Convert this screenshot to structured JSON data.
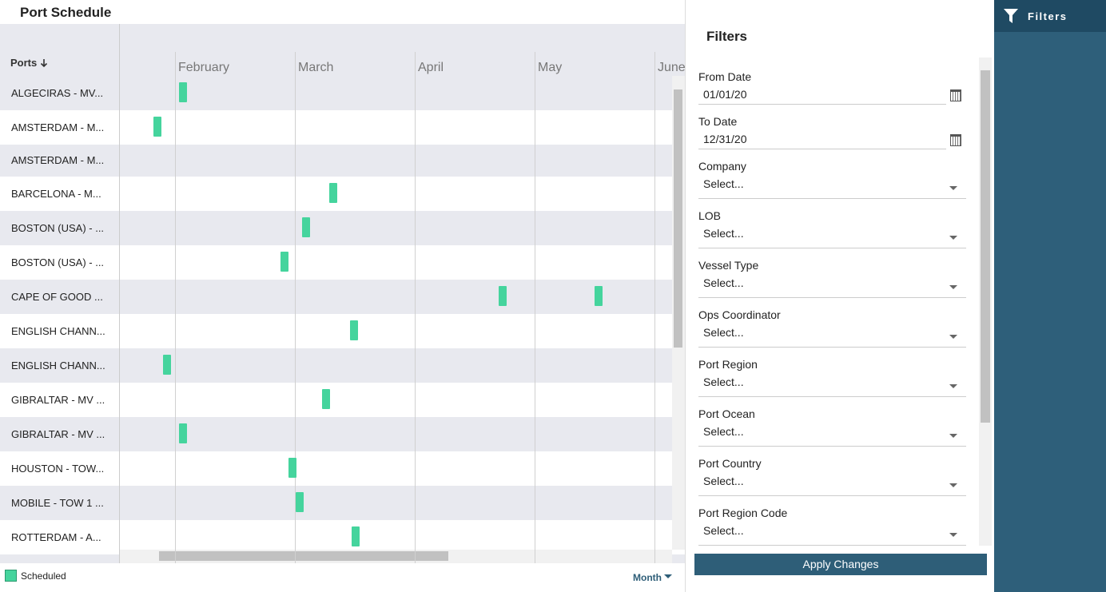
{
  "header": {
    "title": "Port Schedule"
  },
  "gantt": {
    "column_header": "Ports",
    "months": [
      "February",
      "March",
      "April",
      "May",
      "June"
    ],
    "rows": [
      "ALGECIRAS - MV...",
      "AMSTERDAM - M...",
      "AMSTERDAM - M...",
      "BARCELONA - M...",
      "BOSTON (USA) - ...",
      "BOSTON (USA) - ...",
      "CAPE OF GOOD ...",
      "ENGLISH CHANN...",
      "ENGLISH CHANN...",
      "GIBRALTAR - MV ...",
      "GIBRALTAR - MV ...",
      "HOUSTON - TOW...",
      "MOBILE - TOW 1 ...",
      "ROTTERDAM - A..."
    ],
    "legend": "Scheduled",
    "timescale": "Month"
  },
  "filters": {
    "title": "Filters",
    "fields": [
      {
        "label": "From Date",
        "value": "01/01/20"
      },
      {
        "label": "To Date",
        "value": "12/31/20"
      },
      {
        "label": "Company",
        "value": "Select..."
      },
      {
        "label": "LOB",
        "value": "Select..."
      },
      {
        "label": "Vessel Type",
        "value": "Select..."
      },
      {
        "label": "Ops Coordinator",
        "value": "Select..."
      },
      {
        "label": "Port Region",
        "value": "Select..."
      },
      {
        "label": "Port Ocean",
        "value": "Select..."
      },
      {
        "label": "Port Country",
        "value": "Select..."
      },
      {
        "label": "Port Region Code",
        "value": "Select..."
      }
    ],
    "button": "Apply Changes"
  },
  "sidebar": {
    "label": "Filters"
  }
}
